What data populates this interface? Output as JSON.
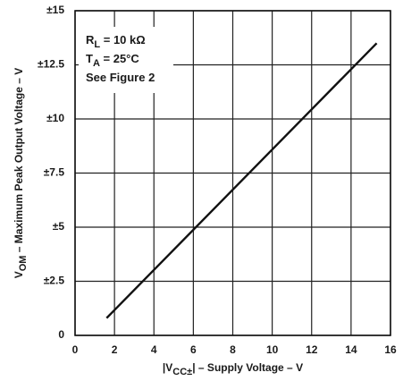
{
  "chart_data": {
    "type": "line",
    "x_label": {
      "text": "|V",
      "sub": "CC±",
      "after": "| – Supply Voltage – V"
    },
    "y_label": {
      "text": "V",
      "sub": "OM",
      "after": " – Maximum Peak Output Voltage – V"
    },
    "annotations": [
      {
        "text": "R",
        "sub": "L",
        "after": " = 10 kΩ"
      },
      {
        "text": "T",
        "sub": "A",
        "after": " = 25°C"
      },
      {
        "text": "See Figure 2"
      }
    ],
    "x": [
      1.6,
      15.3
    ],
    "series": [
      {
        "color": "#111111",
        "values": [
          0.8,
          13.5
        ]
      }
    ],
    "xlim": [
      0,
      16
    ],
    "xticks": [
      0,
      2,
      4,
      6,
      8,
      10,
      12,
      14,
      16
    ],
    "ylim": [
      0,
      15
    ],
    "yticks": [
      0,
      {
        "value": 2.5,
        "label": "±2.5"
      },
      {
        "value": 5,
        "label": "±5"
      },
      {
        "value": 7.5,
        "label": "±7.5"
      },
      {
        "value": 10,
        "label": "±10"
      },
      {
        "value": 12.5,
        "label": "±12.5"
      },
      {
        "value": 15,
        "label": "±15"
      }
    ],
    "grid": true
  }
}
